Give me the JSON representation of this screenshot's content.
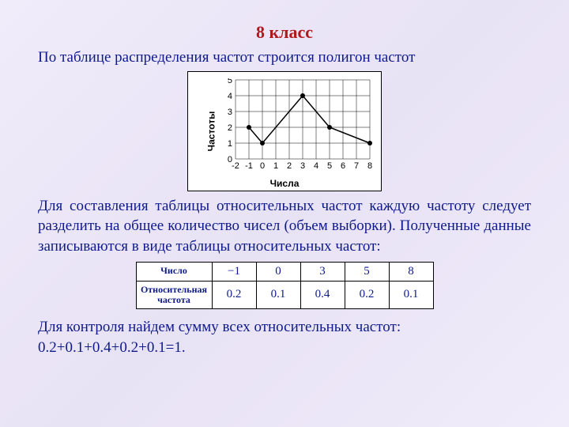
{
  "title": "8 класс",
  "intro": "По таблице распределения частот строится полигон частот",
  "chart": {
    "type": "line",
    "x_label": "Числа",
    "y_label": "Частоты",
    "x_ticks": [
      -2,
      -1,
      0,
      1,
      2,
      3,
      4,
      5,
      6,
      7,
      8
    ],
    "y_ticks": [
      0,
      1,
      2,
      3,
      4,
      5
    ],
    "xlim": [
      -2,
      8
    ],
    "ylim": [
      0,
      5
    ],
    "grid_color": "#000000",
    "line_color": "#000000",
    "marker_color": "#000000",
    "background_color": "#ffffff",
    "tick_fontsize": 11,
    "label_fontsize": 12,
    "points": [
      {
        "x": -1,
        "y": 2
      },
      {
        "x": 0,
        "y": 1
      },
      {
        "x": 3,
        "y": 4
      },
      {
        "x": 5,
        "y": 2
      },
      {
        "x": 8,
        "y": 1
      }
    ]
  },
  "para2": "Для составления таблицы относительных частот каждую частоту следует разделить на общее количество чисел (объем выборки). Полученные данные записываются в виде таблицы относительных частот:",
  "table": {
    "row1_head": "Число",
    "row2_head": "Относительная частота",
    "columns": [
      "−1",
      "0",
      "3",
      "5",
      "8"
    ],
    "values": [
      "0.2",
      "0.1",
      "0.4",
      "0.2",
      "0.1"
    ]
  },
  "para3_line1": "Для контроля найдем сумму всех относительных частот:",
  "para3_line2": "0.2+0.1+0.4+0.2+0.1=1."
}
